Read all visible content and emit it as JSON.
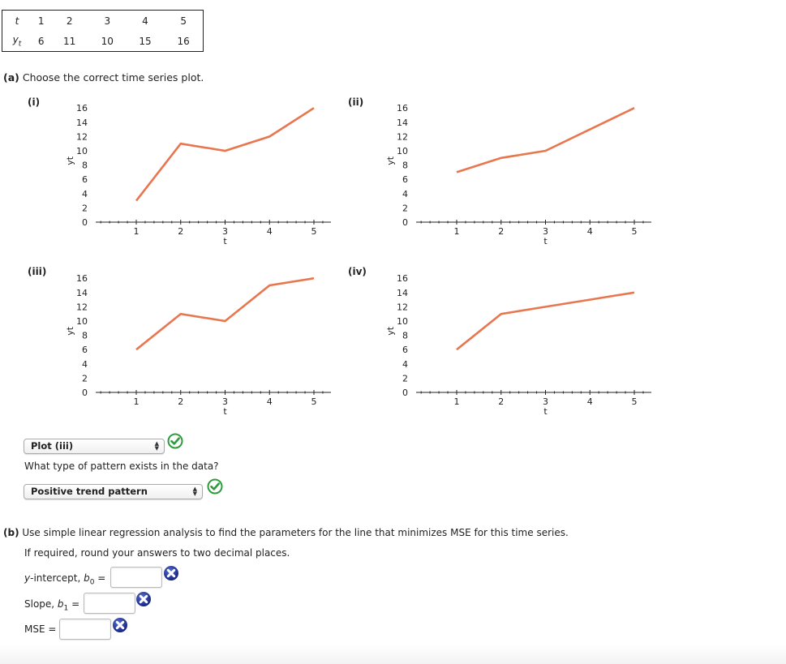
{
  "data_table": {
    "row_t_label": "t",
    "row_y_label": "y",
    "row_y_sub": "t",
    "t": [
      "1",
      "2",
      "3",
      "4",
      "5"
    ],
    "y": [
      "6",
      "11",
      "10",
      "15",
      "16"
    ]
  },
  "part_a": {
    "label": "(a)",
    "prompt": "Choose the correct time series plot.",
    "plots": [
      {
        "label": "(i)"
      },
      {
        "label": "(ii)"
      },
      {
        "label": "(iii)"
      },
      {
        "label": "(iv)"
      }
    ],
    "plot_select": {
      "value": "Plot (iii)",
      "status": "correct"
    },
    "pattern_question": "What type of pattern exists in the data?",
    "pattern_select": {
      "value": "Positive trend pattern",
      "status": "correct"
    }
  },
  "part_b": {
    "label": "(b)",
    "prompt": "Use simple linear regression analysis to find the parameters for the line that minimizes MSE for this time series.",
    "note": "If required, round your answers to two decimal places.",
    "fields": [
      {
        "label_pre": "y",
        "label_mid": "-intercept, ",
        "var": "b",
        "sub": "0",
        "eq": " =",
        "value": "",
        "status": "incorrect"
      },
      {
        "label_pre": "",
        "label_mid": "Slope, ",
        "var": "b",
        "sub": "1",
        "eq": " =",
        "value": "",
        "status": "incorrect"
      },
      {
        "label_pre": "",
        "label_mid": "MSE",
        "var": "",
        "sub": "",
        "eq": " =",
        "value": "",
        "status": "incorrect"
      }
    ]
  },
  "colors": {
    "line": "#e8774f",
    "check_green": "#2e9b3c",
    "x_blue": "#1f2f8f"
  },
  "chart_data": [
    {
      "type": "line",
      "title": "(i)",
      "xlabel": "t",
      "ylabel": "yt",
      "x": [
        1,
        2,
        3,
        4,
        5
      ],
      "values": [
        3,
        11,
        10,
        12,
        16
      ],
      "xticks": [
        1,
        2,
        3,
        4,
        5
      ],
      "yticks": [
        0,
        2,
        4,
        6,
        8,
        10,
        12,
        14,
        16
      ],
      "ylim": [
        0,
        16
      ],
      "grid": false
    },
    {
      "type": "line",
      "title": "(ii)",
      "xlabel": "t",
      "ylabel": "yt",
      "x": [
        1,
        2,
        3,
        4,
        5
      ],
      "values": [
        7,
        9,
        10,
        13,
        16
      ],
      "xticks": [
        1,
        2,
        3,
        4,
        5
      ],
      "yticks": [
        0,
        2,
        4,
        6,
        8,
        10,
        12,
        14,
        16
      ],
      "ylim": [
        0,
        16
      ],
      "grid": false
    },
    {
      "type": "line",
      "title": "(iii)",
      "xlabel": "t",
      "ylabel": "yt",
      "x": [
        1,
        2,
        3,
        4,
        5
      ],
      "values": [
        6,
        11,
        10,
        15,
        16
      ],
      "xticks": [
        1,
        2,
        3,
        4,
        5
      ],
      "yticks": [
        0,
        2,
        4,
        6,
        8,
        10,
        12,
        14,
        16
      ],
      "ylim": [
        0,
        16
      ],
      "grid": false
    },
    {
      "type": "line",
      "title": "(iv)",
      "xlabel": "t",
      "ylabel": "yt",
      "x": [
        1,
        2,
        3,
        4,
        5
      ],
      "values": [
        6,
        11,
        12,
        13,
        14
      ],
      "xticks": [
        1,
        2,
        3,
        4,
        5
      ],
      "yticks": [
        0,
        2,
        4,
        6,
        8,
        10,
        12,
        14,
        16
      ],
      "ylim": [
        0,
        16
      ],
      "grid": false
    }
  ]
}
